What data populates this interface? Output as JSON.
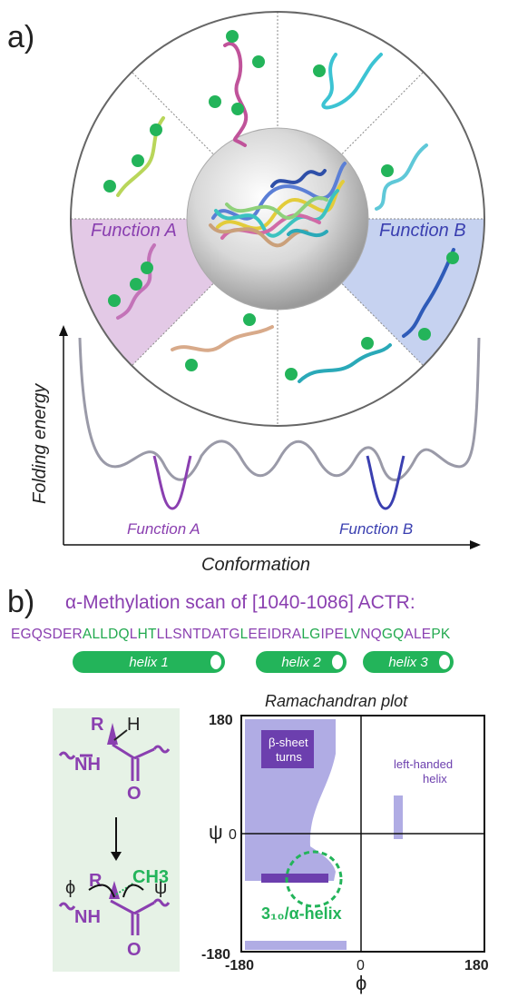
{
  "panel_a": {
    "label": "a)",
    "function_a": "Function A",
    "function_b": "Function B",
    "ylabel": "Folding energy",
    "xlabel": "Conformation",
    "colors": {
      "purple": "#8a3fb0",
      "blue": "#3a4fb0",
      "green": "#23b45a"
    }
  },
  "panel_b": {
    "label": "b)",
    "title": "α-Methylation scan of [1040-1086] ACTR:",
    "sequence": [
      {
        "t": "EGQSDER",
        "c": "p"
      },
      {
        "t": "ALLDQ",
        "c": "g"
      },
      {
        "t": "L",
        "c": "p"
      },
      {
        "t": "HT",
        "c": "g"
      },
      {
        "t": "LLSNTDATG",
        "c": "p"
      },
      {
        "t": "L",
        "c": "g"
      },
      {
        "t": "EEIDRA",
        "c": "p"
      },
      {
        "t": "LG",
        "c": "g"
      },
      {
        "t": "IPE",
        "c": "p"
      },
      {
        "t": "LV",
        "c": "g"
      },
      {
        "t": "NQ",
        "c": "p"
      },
      {
        "t": "GQ",
        "c": "g"
      },
      {
        "t": "ALE",
        "c": "p"
      },
      {
        "t": "PK",
        "c": "g"
      }
    ],
    "helices": [
      "helix 1",
      "helix 2",
      "helix 3"
    ],
    "chem": {
      "r": "R",
      "h": "H",
      "nh": "NH",
      "o": "O",
      "ch3": "CH3",
      "phi": "ϕ",
      "psi": "ψ"
    },
    "rama": {
      "title": "Ramachandran plot",
      "y_ticks": [
        "180",
        "0",
        "-180"
      ],
      "x_ticks": [
        "-180",
        "0",
        "180"
      ],
      "ylabel": "ψ",
      "xlabel": "ϕ",
      "beta_label": "β-sheet turns",
      "lh_label": "left-handed helix",
      "helix_label": "3₁₀/α-helix"
    }
  }
}
